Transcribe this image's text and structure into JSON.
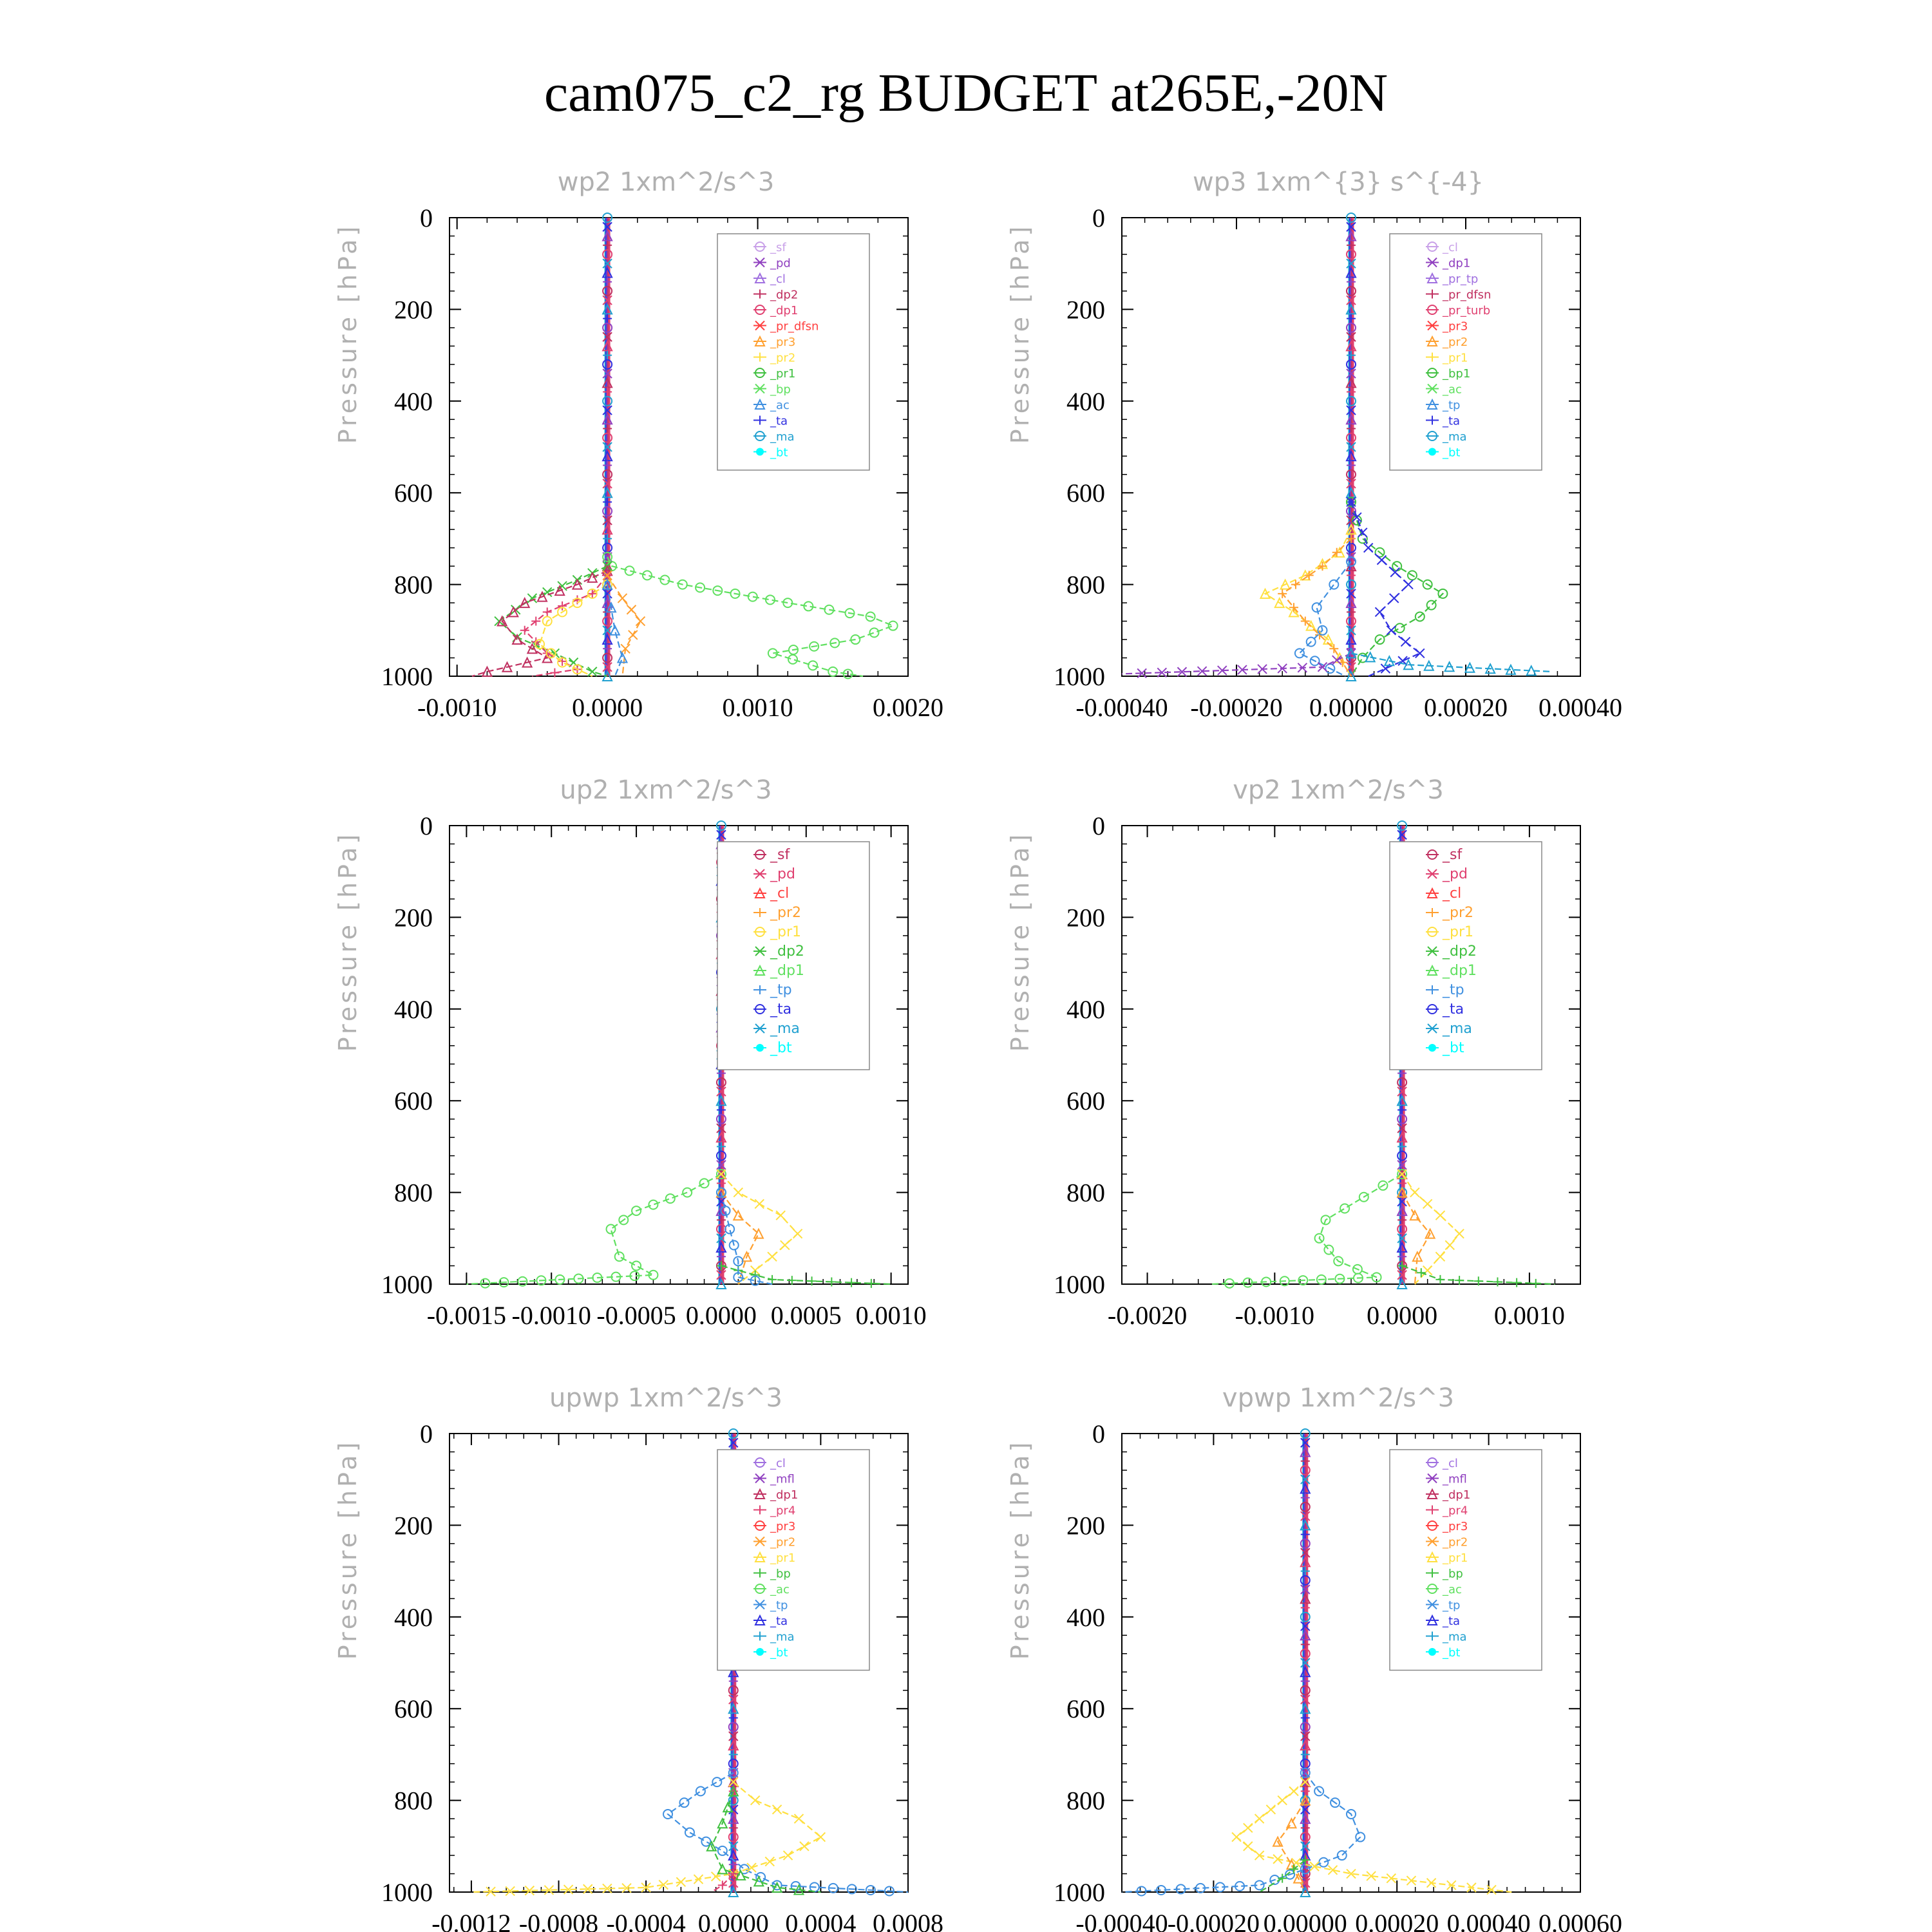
{
  "title": "cam075_c2_rg  BUDGET at265E,-20N",
  "colors": {
    "sf": "#c8a0e8",
    "pd": "#9040c0",
    "cl": "#a070e0",
    "dp2": "#c03060",
    "dp1": "#e04070",
    "pr": "#ff4040",
    "pr3": "#ffa030",
    "pr2": "#ffe040",
    "pr1": "#40c040",
    "bp": "#60e060",
    "ac": "#4090e0",
    "ta": "#3030e0",
    "ma": "#20a0d0",
    "bt": "#00ffff"
  },
  "chart_data": [
    {
      "type": "line",
      "title": "wp2  1xm^2/s^3",
      "ylabel": "Pressure [hPa]",
      "xlim": [
        -0.00105,
        0.002
      ],
      "ylim": [
        0,
        1000
      ],
      "xticks": [
        "-0.0010",
        "0.0000",
        "0.0010",
        "0.0020"
      ],
      "xtick_values": [
        -0.001,
        0.0,
        0.001,
        0.002
      ],
      "yticks": [
        "0",
        "200",
        "400",
        "600",
        "800",
        "1000"
      ],
      "legend": [
        "_sf",
        "_pd",
        "_cl",
        "_dp2",
        "_dp1",
        "_pr_dfsn",
        "_pr3",
        "_pr2",
        "_pr1",
        "_bp",
        "_ac",
        "_ta",
        "_ma",
        "_bt"
      ],
      "legend_colors": [
        "#c8a0e8",
        "#9040c0",
        "#a070e0",
        "#c03060",
        "#e04070",
        "#ff4040",
        "#ffa030",
        "#ffe040",
        "#40c040",
        "#60e060",
        "#4090e0",
        "#3030e0",
        "#20a0d0",
        "#00ffff"
      ],
      "series": [
        {
          "color": "#60e060",
          "x": [
            0,
            3e-05,
            0.0005,
            0.0012,
            0.00175,
            0.0019,
            0.00165,
            0.0011,
            0.0015,
            0.0017
          ],
          "y": [
            740,
            760,
            800,
            840,
            870,
            890,
            920,
            950,
            990,
            1000
          ]
        },
        {
          "color": "#40c040",
          "x": [
            0,
            -0.0002,
            -0.0005,
            -0.00072,
            -0.0006,
            -0.00035,
            -0.0001,
            0
          ],
          "y": [
            760,
            790,
            830,
            880,
            915,
            950,
            990,
            1000
          ]
        },
        {
          "color": "#c03060",
          "x": [
            0,
            -0.0002,
            -0.00055,
            -0.0007,
            -0.0006,
            -0.0004,
            -0.0008,
            -0.0009
          ],
          "y": [
            770,
            800,
            840,
            880,
            920,
            960,
            990,
            1000
          ]
        },
        {
          "color": "#e04070",
          "x": [
            0,
            -0.0001,
            -0.0004,
            -0.00055,
            -0.0004,
            -0.0002,
            -0.0005
          ],
          "y": [
            780,
            820,
            860,
            900,
            950,
            985,
            1000
          ]
        },
        {
          "color": "#ffe040",
          "x": [
            0,
            -0.0002,
            -0.0004,
            -0.00045,
            -0.0003,
            -0.0001
          ],
          "y": [
            800,
            840,
            880,
            930,
            970,
            1000
          ]
        },
        {
          "color": "#ffa030",
          "x": [
            0,
            0.0001,
            0.00022,
            0.00012,
            0.0001
          ],
          "y": [
            780,
            830,
            880,
            940,
            1000
          ]
        },
        {
          "color": "#4090e0",
          "x": [
            0,
            5e-05,
            0.0001,
            5e-05
          ],
          "y": [
            800,
            900,
            960,
            1000
          ]
        }
      ]
    },
    {
      "type": "line",
      "title": "wp3  1xm^{3} s^{-4}",
      "ylabel": "Pressure [hPa]",
      "xlim": [
        -0.0004,
        0.0004
      ],
      "ylim": [
        0,
        1000
      ],
      "xticks": [
        "-0.00040",
        "-0.00020",
        "0.00000",
        "0.00020",
        "0.00040"
      ],
      "xtick_values": [
        -0.0004,
        -0.0002,
        0.0,
        0.0002,
        0.0004
      ],
      "yticks": [
        "0",
        "200",
        "400",
        "600",
        "800",
        "1000"
      ],
      "legend": [
        "_cl",
        "_dp1",
        "_pr_tp",
        "_pr_dfsn",
        "_pr_turb",
        "_pr3",
        "_pr2",
        "_pr1",
        "_bp1",
        "_ac",
        "_tp",
        "_ta",
        "_ma",
        "_bt"
      ],
      "legend_colors": [
        "#c8a0e8",
        "#9040c0",
        "#a070e0",
        "#c03060",
        "#e04070",
        "#ff4040",
        "#ffa030",
        "#ffe040",
        "#40c040",
        "#60e060",
        "#4090e0",
        "#3030e0",
        "#20a0d0",
        "#00ffff"
      ],
      "series": [
        {
          "color": "#40c040",
          "x": [
            0,
            2e-05,
            8e-05,
            0.00016,
            0.00012,
            5e-05,
            2e-05,
            0
          ],
          "y": [
            620,
            700,
            760,
            820,
            870,
            920,
            960,
            1000
          ]
        },
        {
          "color": "#3030e0",
          "x": [
            0,
            3e-05,
            0.0001,
            5e-05,
            7e-05,
            0.00012,
            3e-05
          ],
          "y": [
            620,
            720,
            800,
            860,
            900,
            950,
            1000
          ]
        },
        {
          "color": "#ffe040",
          "x": [
            0,
            -2e-05,
            -8e-05,
            -0.00015,
            -0.0001,
            -4e-05,
            0
          ],
          "y": [
            680,
            730,
            780,
            820,
            860,
            920,
            1000
          ]
        },
        {
          "color": "#ffa030",
          "x": [
            0,
            -5e-05,
            -0.00012,
            -8e-05,
            -3e-05,
            0
          ],
          "y": [
            700,
            760,
            820,
            880,
            940,
            1000
          ]
        },
        {
          "color": "#4090e0",
          "x": [
            0,
            -3e-05,
            -6e-05,
            -5e-05,
            -9e-05,
            -1e-05
          ],
          "y": [
            750,
            800,
            850,
            900,
            950,
            1000
          ]
        },
        {
          "color": "#9040c0",
          "x": [
            0,
            -5e-05,
            -0.0004
          ],
          "y": [
            950,
            980,
            995
          ]
        },
        {
          "color": "#20a0d0",
          "x": [
            0,
            0.0001,
            0.00035
          ],
          "y": [
            950,
            975,
            990
          ]
        }
      ]
    },
    {
      "type": "line",
      "title": "up2  1xm^2/s^3",
      "ylabel": "Pressure [hPa]",
      "xlim": [
        -0.0016,
        0.0011
      ],
      "ylim": [
        0,
        1000
      ],
      "xticks": [
        "-0.0015",
        "-0.0010",
        "-0.0005",
        "0.0000",
        "0.0005",
        "0.0010"
      ],
      "xtick_values": [
        -0.0015,
        -0.001,
        -0.0005,
        0.0,
        0.0005,
        0.001
      ],
      "yticks": [
        "0",
        "200",
        "400",
        "600",
        "800",
        "1000"
      ],
      "legend": [
        "_sf",
        "_pd",
        "_cl",
        "_pr2",
        "_pr1",
        "_dp2",
        "_dp1",
        "_tp",
        "_ta",
        "_ma",
        "_bt"
      ],
      "legend_colors": [
        "#c03060",
        "#e04070",
        "#ff4040",
        "#ffa030",
        "#ffe040",
        "#40c040",
        "#60e060",
        "#4090e0",
        "#3030e0",
        "#20a0d0",
        "#00ffff"
      ],
      "series": [
        {
          "color": "#60e060",
          "x": [
            0,
            -0.0002,
            -0.0005,
            -0.00065,
            -0.0006,
            -0.0004,
            -0.0015
          ],
          "y": [
            760,
            800,
            840,
            880,
            940,
            980,
            1000
          ]
        },
        {
          "color": "#ffe040",
          "x": [
            0,
            0.0001,
            0.00035,
            0.00045,
            0.0003,
            0.0001
          ],
          "y": [
            760,
            800,
            850,
            890,
            940,
            1000
          ]
        },
        {
          "color": "#ffa030",
          "x": [
            0,
            0.0001,
            0.00022,
            0.00015,
            0.0001
          ],
          "y": [
            800,
            850,
            890,
            940,
            1000
          ]
        },
        {
          "color": "#40c040",
          "x": [
            0,
            0.0003,
            0.001
          ],
          "y": [
            960,
            990,
            1000
          ]
        },
        {
          "color": "#4090e0",
          "x": [
            0,
            5e-05,
            0.0001,
            0.0001,
            0.0003
          ],
          "y": [
            800,
            880,
            950,
            985,
            1000
          ]
        }
      ]
    },
    {
      "type": "line",
      "title": "vp2  1xm^2/s^3",
      "ylabel": "Pressure [hPa]",
      "xlim": [
        -0.0022,
        0.0014
      ],
      "ylim": [
        0,
        1000
      ],
      "xticks": [
        "-0.0020",
        "-0.0010",
        "0.0000",
        "0.0010"
      ],
      "xtick_values": [
        -0.002,
        -0.001,
        0.0,
        0.001
      ],
      "yticks": [
        "0",
        "200",
        "400",
        "600",
        "800",
        "1000"
      ],
      "legend": [
        "_sf",
        "_pd",
        "_cl",
        "_pr2",
        "_pr1",
        "_dp2",
        "_dp1",
        "_tp",
        "_ta",
        "_ma",
        "_bt"
      ],
      "legend_colors": [
        "#c03060",
        "#e04070",
        "#ff4040",
        "#ffa030",
        "#ffe040",
        "#40c040",
        "#60e060",
        "#4090e0",
        "#3030e0",
        "#20a0d0",
        "#00ffff"
      ],
      "series": [
        {
          "color": "#60e060",
          "x": [
            0,
            -0.0003,
            -0.0006,
            -0.00065,
            -0.0005,
            -0.0002,
            -0.0015
          ],
          "y": [
            760,
            810,
            860,
            900,
            950,
            985,
            1000
          ]
        },
        {
          "color": "#ffe040",
          "x": [
            0,
            0.0001,
            0.0003,
            0.00045,
            0.0003,
            0.0001
          ],
          "y": [
            760,
            800,
            850,
            890,
            940,
            1000
          ]
        },
        {
          "color": "#ffa030",
          "x": [
            0,
            0.0001,
            0.00022,
            0.00012,
            0.0001
          ],
          "y": [
            800,
            850,
            890,
            940,
            1000
          ]
        },
        {
          "color": "#40c040",
          "x": [
            0,
            0.0003,
            0.0012
          ],
          "y": [
            960,
            990,
            1000
          ]
        }
      ]
    },
    {
      "type": "line",
      "title": "upwp  1xm^2/s^3",
      "ylabel": "Pressure [hPa]",
      "xlim": [
        -0.0013,
        0.0008
      ],
      "ylim": [
        0,
        1000
      ],
      "xticks": [
        "-0.0012",
        "-0.0008",
        "-0.0004",
        "0.0000",
        "0.0004",
        "0.0008"
      ],
      "xtick_values": [
        -0.0012,
        -0.0008,
        -0.0004,
        0.0,
        0.0004,
        0.0008
      ],
      "yticks": [
        "0",
        "200",
        "400",
        "600",
        "800",
        "1000"
      ],
      "legend": [
        "_cl",
        "_mfl",
        "_dp1",
        "_pr4",
        "_pr3",
        "_pr2",
        "_pr1",
        "_bp",
        "_ac",
        "_tp",
        "_ta",
        "_ma",
        "_bt"
      ],
      "legend_colors": [
        "#a070e0",
        "#9040c0",
        "#c03060",
        "#e04070",
        "#ff4040",
        "#ffa030",
        "#ffe040",
        "#40c040",
        "#60e060",
        "#4090e0",
        "#3030e0",
        "#20a0d0",
        "#00ffff"
      ],
      "series": [
        {
          "color": "#4090e0",
          "x": [
            0,
            -0.00015,
            -0.0003,
            -0.0002,
            -5e-05,
            5e-05,
            0.0002,
            0.0008
          ],
          "y": [
            740,
            780,
            830,
            870,
            910,
            950,
            985,
            1000
          ]
        },
        {
          "color": "#ffe040",
          "x": [
            0,
            0.0001,
            0.0003,
            0.0004,
            0.00025,
            0.0,
            -0.0004,
            -0.0012
          ],
          "y": [
            760,
            800,
            840,
            880,
            920,
            960,
            990,
            1000
          ]
        },
        {
          "color": "#40c040",
          "x": [
            0,
            -5e-05,
            -0.0001,
            -5e-05,
            0.0002,
            0.0004
          ],
          "y": [
            780,
            850,
            900,
            950,
            990,
            1000
          ]
        },
        {
          "color": "#e04070",
          "x": [
            0,
            -5e-05,
            -0.0001
          ],
          "y": [
            960,
            985,
            1000
          ]
        }
      ]
    },
    {
      "type": "line",
      "title": "vpwp  1xm^2/s^3",
      "ylabel": "Pressure [hPa]",
      "xlim": [
        -0.0004,
        0.0006
      ],
      "ylim": [
        0,
        1000
      ],
      "xticks": [
        "-0.00040",
        "-0.00020",
        "0.00000",
        "0.00020",
        "0.00040",
        "0.00060"
      ],
      "xtick_values": [
        -0.0004,
        -0.0002,
        0.0,
        0.0002,
        0.0004,
        0.0006
      ],
      "yticks": [
        "0",
        "200",
        "400",
        "600",
        "800",
        "1000"
      ],
      "legend": [
        "_cl",
        "_mfl",
        "_dp1",
        "_pr4",
        "_pr3",
        "_pr2",
        "_pr1",
        "_bp",
        "_ac",
        "_tp",
        "_ta",
        "_ma",
        "_bt"
      ],
      "legend_colors": [
        "#a070e0",
        "#9040c0",
        "#c03060",
        "#e04070",
        "#ff4040",
        "#ffa030",
        "#ffe040",
        "#40c040",
        "#60e060",
        "#4090e0",
        "#3030e0",
        "#20a0d0",
        "#00ffff"
      ],
      "series": [
        {
          "color": "#4090e0",
          "x": [
            0,
            3e-05,
            0.0001,
            0.00012,
            8e-05,
            0.0,
            -0.0001,
            -0.0004
          ],
          "y": [
            740,
            780,
            830,
            880,
            920,
            950,
            985,
            1000
          ]
        },
        {
          "color": "#ffe040",
          "x": [
            0,
            -5e-05,
            -0.0001,
            -0.00015,
            -0.0001,
            0.0001,
            0.00045
          ],
          "y": [
            760,
            800,
            840,
            880,
            920,
            960,
            1000
          ]
        },
        {
          "color": "#ffa030",
          "x": [
            0,
            -3e-05,
            -6e-05,
            -3e-05,
            0
          ],
          "y": [
            800,
            850,
            890,
            940,
            1000
          ]
        },
        {
          "color": "#40c040",
          "x": [
            0,
            -5e-05,
            -0.0001
          ],
          "y": [
            930,
            970,
            1000
          ]
        }
      ]
    }
  ]
}
